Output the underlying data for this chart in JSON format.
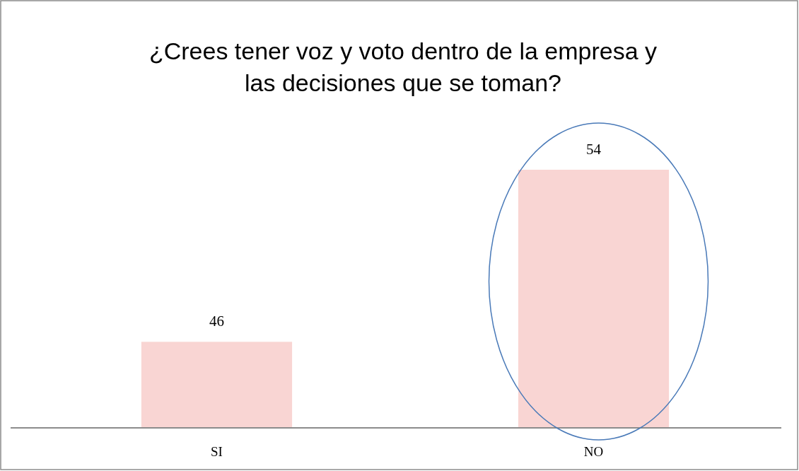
{
  "chart_data": {
    "type": "bar",
    "title": "¿Crees tener voz y voto dentro de la empresa y las decisiones que se toman?",
    "categories": [
      "SI",
      "NO"
    ],
    "values": [
      46,
      54
    ],
    "color": "#f9d5d3",
    "ylim": [
      42,
      54
    ],
    "data_labels": true,
    "tick_labels": "x"
  }
}
